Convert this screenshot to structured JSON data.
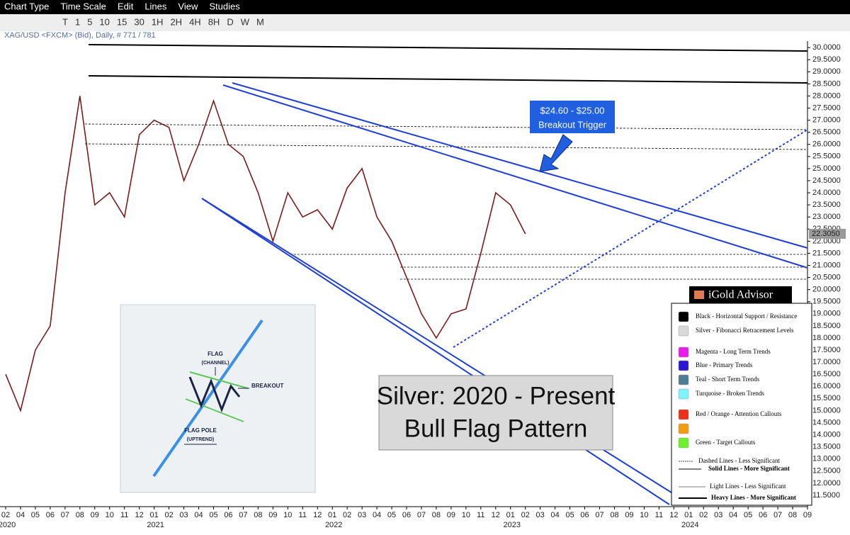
{
  "menu": [
    "Chart Type",
    "Time Scale",
    "Edit",
    "Lines",
    "View",
    "Studies"
  ],
  "toolbar": [
    "T",
    "1",
    "5",
    "10",
    "15",
    "30",
    "1H",
    "2H",
    "4H",
    "8H",
    "D",
    "W",
    "M"
  ],
  "chart_data": {
    "type": "line",
    "subtitle": "XAG/USD <FXCM> (Bid), Daily, # 771 / 781",
    "categories": [
      "02",
      "04",
      "05",
      "06",
      "07",
      "08",
      "09",
      "10",
      "11",
      "12",
      "01",
      "02",
      "03",
      "04",
      "05",
      "06",
      "07",
      "08",
      "09",
      "10",
      "11",
      "12",
      "01",
      "02",
      "03",
      "04",
      "05",
      "06",
      "07",
      "08",
      "09",
      "10",
      "11",
      "12",
      "01",
      "02",
      "03",
      "04",
      "05",
      "06",
      "07",
      "08",
      "09",
      "10",
      "11",
      "12",
      "01",
      "02",
      "03",
      "04",
      "05",
      "06",
      "07",
      "08",
      "09"
    ],
    "years": [
      "2020",
      "2021",
      "2022",
      "2023",
      "2024"
    ],
    "color": "#7a1c1c",
    "values": [
      16.5,
      15.0,
      17.5,
      18.5,
      24.0,
      28.0,
      23.5,
      24.0,
      23.0,
      26.4,
      27.0,
      26.7,
      24.5,
      26.0,
      27.8,
      26.0,
      25.5,
      24.0,
      22.0,
      24.0,
      23.0,
      23.3,
      22.5,
      24.2,
      25.0,
      23.0,
      22.0,
      20.5,
      19.0,
      18.0,
      19.0,
      19.2,
      21.5,
      24.0,
      23.5,
      22.3,
      null,
      null,
      null,
      null,
      null,
      null,
      null,
      null,
      null,
      null,
      null,
      null,
      null,
      null,
      null,
      null,
      null,
      null,
      null
    ],
    "last_price": {
      "value": 22.305,
      "label": "22.3050"
    },
    "ylim": [
      11.03,
      31.38
    ],
    "yticks": [
      {
        "value": 11.5,
        "label": "11.5000"
      },
      {
        "value": 12,
        "label": "12.0000"
      },
      {
        "value": 12.5,
        "label": "12.5000"
      },
      {
        "value": 13,
        "label": "13.0000"
      },
      {
        "value": 13.5,
        "label": "13.5000"
      },
      {
        "value": 14,
        "label": "14.0000"
      },
      {
        "value": 14.5,
        "label": "14.5000"
      },
      {
        "value": 15,
        "label": "15.0000"
      },
      {
        "value": 15.5,
        "label": "15.5000"
      },
      {
        "value": 16,
        "label": "16.0000"
      },
      {
        "value": 16.5,
        "label": "16.5000"
      },
      {
        "value": 17,
        "label": "17.0000"
      },
      {
        "value": 17.5,
        "label": "17.5000"
      },
      {
        "value": 18,
        "label": "18.0000"
      },
      {
        "value": 18.5,
        "label": "18.5000"
      },
      {
        "value": 19,
        "label": "19.0000"
      },
      {
        "value": 19.5,
        "label": "19.5000"
      },
      {
        "value": 20,
        "label": "20.0000"
      },
      {
        "value": 20.5,
        "label": "20.5000"
      },
      {
        "value": 21,
        "label": "21.0000"
      },
      {
        "value": 21.5,
        "label": "21.5000"
      },
      {
        "value": 22,
        "label": "22.0000"
      },
      {
        "value": 22.5,
        "label": "22.5000"
      },
      {
        "value": 23,
        "label": "23.0000"
      },
      {
        "value": 23.5,
        "label": "23.5000"
      },
      {
        "value": 24,
        "label": "24.0000"
      },
      {
        "value": 24.5,
        "label": "24.5000"
      },
      {
        "value": 25,
        "label": "25.0000"
      },
      {
        "value": 25.5,
        "label": "25.5000"
      },
      {
        "value": 26,
        "label": "26.0000"
      },
      {
        "value": 26.5,
        "label": "26.5000"
      },
      {
        "value": 27,
        "label": "27.0000"
      },
      {
        "value": 27.5,
        "label": "27.5000"
      },
      {
        "value": 28,
        "label": "28.0000"
      },
      {
        "value": 28.5,
        "label": "28.5000"
      },
      {
        "value": 29,
        "label": "29.0000"
      },
      {
        "value": 29.5,
        "label": "29.5000"
      },
      {
        "value": 30,
        "label": "30.0000"
      }
    ]
  },
  "callout": {
    "line1": "$24.60 - $25.00",
    "line2": "Breakout Trigger"
  },
  "headline": {
    "line1": "Silver: 2020 - Present",
    "line2": "Bull Flag Pattern"
  },
  "inset": {
    "flag": "FLAG",
    "channel": "(CHANNEL)",
    "breakout": "BREAKOUT",
    "pole": "FLAG POLE",
    "uptrend": "(UPTREND)"
  },
  "logo": "iGold Advisor",
  "legend_items": [
    {
      "label": "Black - Horizontal Support / Resistance",
      "color": "#000000"
    },
    {
      "label": "Silver - Fibonacci Retracement Levels",
      "color": "#d9d9d9"
    },
    {
      "label": "Magenta - Long Term Trends",
      "color": "#e81ee8"
    },
    {
      "label": "Blue - Primary Trends",
      "color": "#2b16d6"
    },
    {
      "label": "Teal - Short Term Trends",
      "color": "#4f7f8f"
    },
    {
      "label": "Turquoise - Broken Trends",
      "color": "#7ff5fb"
    },
    {
      "label": "Red / Orange - Attention Callouts",
      "color": "#e8301a"
    },
    {
      "label": "",
      "color": "#f39c12"
    },
    {
      "label": "Green - Target Callouts",
      "color": "#6ef02c"
    }
  ],
  "line_styles": [
    "Dashed Lines - Less Significant",
    "Solid Lines - More Significant",
    "Light Lines - Less Significant",
    "Heavy Lines - More Significant"
  ]
}
